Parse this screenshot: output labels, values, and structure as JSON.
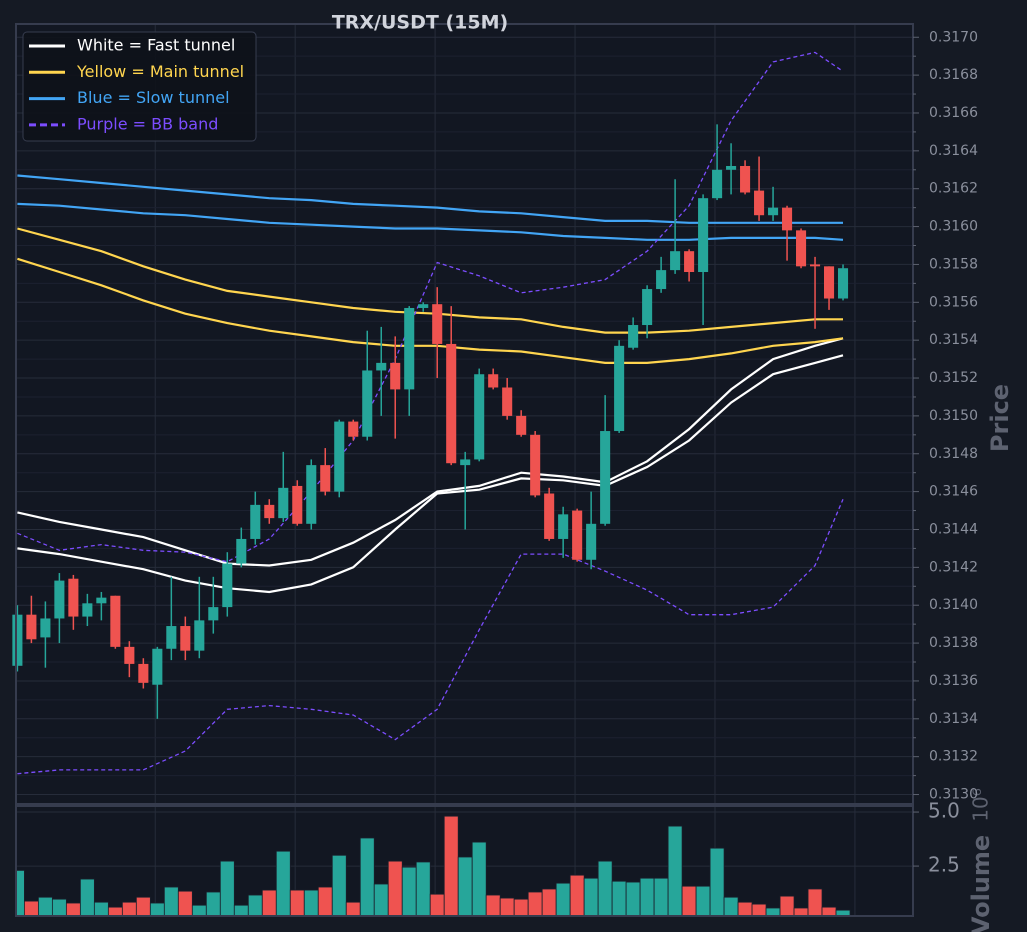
{
  "chart_data": [
    {
      "type": "candlestick",
      "title": "TRX/USDT (15M)",
      "ylabel": "Price",
      "up_color": "#26a69a",
      "down_color": "#ef5350",
      "xlim": [
        -0.1,
        64
      ],
      "xticks": [
        9.85,
        19.85,
        29.85,
        39.85,
        49.85,
        59.85
      ],
      "ylim": [
        0.31295,
        0.31707
      ],
      "yticks": [
        {
          "value": 0.313,
          "label": "0.3130"
        },
        0.3132,
        0.3134,
        0.3136,
        0.3138,
        {
          "value": 0.314,
          "label": "0.3140"
        },
        0.3142,
        0.3144,
        0.3146,
        0.3148,
        {
          "value": 0.315,
          "label": "0.3150"
        },
        0.3152,
        0.3154,
        0.3156,
        0.3158,
        {
          "value": 0.316,
          "label": "0.3160"
        },
        0.3162,
        0.3164,
        0.3166,
        0.3168,
        {
          "value": 0.317,
          "label": "0.3170"
        }
      ],
      "grid": true,
      "open": [
        0.31368,
        0.31395,
        0.31383,
        0.31393,
        0.31414,
        0.31394,
        0.31401,
        0.31405,
        0.31378,
        0.31369,
        0.31358,
        0.31377,
        0.31389,
        0.31376,
        0.31392,
        0.31399,
        0.31422,
        0.31435,
        0.31453,
        0.31446,
        0.31463,
        0.31443,
        0.31474,
        0.3146,
        0.31497,
        0.31489,
        0.31524,
        0.31528,
        0.31514,
        0.31557,
        0.31559,
        0.31538,
        0.31474,
        0.31477,
        0.31522,
        0.31515,
        0.315,
        0.3149,
        0.31459,
        0.31435,
        0.3145,
        0.31424,
        0.31443,
        0.31492,
        0.31536,
        0.31548,
        0.31567,
        0.31577,
        0.31587,
        0.31576,
        0.31615,
        0.3163,
        0.31632,
        0.31619,
        0.31606,
        0.3161,
        0.31598,
        0.3158,
        0.31579,
        0.31562
      ],
      "high": [
        0.314,
        0.31405,
        0.31402,
        0.31417,
        0.31416,
        0.31406,
        0.31407,
        0.31405,
        0.31381,
        0.31372,
        0.31378,
        0.31415,
        0.31394,
        0.31415,
        0.31415,
        0.31428,
        0.31441,
        0.3146,
        0.31456,
        0.31481,
        0.31466,
        0.31477,
        0.31483,
        0.31498,
        0.31498,
        0.31545,
        0.31547,
        0.31542,
        0.31558,
        0.3156,
        0.31568,
        0.31558,
        0.31481,
        0.31525,
        0.31525,
        0.3152,
        0.31503,
        0.31492,
        0.31462,
        0.31452,
        0.31451,
        0.3146,
        0.31511,
        0.3154,
        0.31552,
        0.31569,
        0.31584,
        0.31625,
        0.31588,
        0.31617,
        0.31654,
        0.31644,
        0.31635,
        0.31637,
        0.31621,
        0.31611,
        0.31599,
        0.31584,
        0.31579,
        0.3158
      ],
      "low": [
        0.31365,
        0.3138,
        0.31367,
        0.3138,
        0.31387,
        0.31389,
        0.31392,
        0.31377,
        0.31362,
        0.31356,
        0.3134,
        0.31371,
        0.31371,
        0.31372,
        0.31385,
        0.31394,
        0.3142,
        0.31432,
        0.31443,
        0.31444,
        0.31442,
        0.3144,
        0.31458,
        0.31457,
        0.31487,
        0.31487,
        0.315,
        0.31488,
        0.315,
        0.31555,
        0.3152,
        0.31474,
        0.3144,
        0.31476,
        0.31514,
        0.31498,
        0.31489,
        0.31457,
        0.31434,
        0.31425,
        0.31423,
        0.31419,
        0.31442,
        0.31491,
        0.31535,
        0.31541,
        0.31565,
        0.31575,
        0.31571,
        0.31548,
        0.31614,
        0.31617,
        0.31617,
        0.31603,
        0.31603,
        0.31582,
        0.31578,
        0.31546,
        0.31556,
        0.31561
      ],
      "close": [
        0.31395,
        0.31382,
        0.31393,
        0.31413,
        0.31394,
        0.31401,
        0.31404,
        0.31378,
        0.31369,
        0.31359,
        0.31377,
        0.31389,
        0.31376,
        0.31392,
        0.31399,
        0.31422,
        0.31435,
        0.31453,
        0.31446,
        0.31462,
        0.31443,
        0.31474,
        0.3146,
        0.31497,
        0.31489,
        0.31524,
        0.31528,
        0.31514,
        0.31557,
        0.31559,
        0.31538,
        0.31475,
        0.31477,
        0.31522,
        0.31515,
        0.315,
        0.3149,
        0.31458,
        0.31435,
        0.31448,
        0.31424,
        0.31443,
        0.31492,
        0.31537,
        0.31548,
        0.31567,
        0.31577,
        0.31587,
        0.31576,
        0.31615,
        0.3163,
        0.31632,
        0.31618,
        0.31606,
        0.3161,
        0.31598,
        0.31579,
        0.31579,
        0.31562,
        0.31578
      ],
      "line_x": [
        0,
        3,
        6,
        9,
        12,
        15,
        18,
        21,
        24,
        27,
        30,
        33,
        36,
        39,
        42,
        45,
        48,
        51,
        54,
        57,
        59
      ],
      "lines": [
        {
          "name": "White = Fast tunnel",
          "color": "#ffffff",
          "style": "solid",
          "upper": [
            0.31449,
            0.31444,
            0.3144,
            0.31436,
            0.31429,
            0.31422,
            0.31421,
            0.31424,
            0.31433,
            0.31445,
            0.3146,
            0.31463,
            0.3147,
            0.31468,
            0.31465,
            0.31476,
            0.31493,
            0.31514,
            0.3153,
            0.31537,
            0.31541
          ],
          "lower": [
            0.3143,
            0.31427,
            0.31423,
            0.31419,
            0.31413,
            0.31409,
            0.31407,
            0.31411,
            0.3142,
            0.3144,
            0.31459,
            0.31461,
            0.31467,
            0.31466,
            0.31463,
            0.31473,
            0.31487,
            0.31507,
            0.31522,
            0.31528,
            0.31532
          ]
        },
        {
          "name": "Yellow = Main tunnel",
          "color": "#ffd54f",
          "style": "solid",
          "upper": [
            0.31599,
            0.31593,
            0.31587,
            0.31579,
            0.31572,
            0.31566,
            0.31563,
            0.3156,
            0.31557,
            0.31555,
            0.31554,
            0.31552,
            0.31551,
            0.31547,
            0.31544,
            0.31544,
            0.31545,
            0.31547,
            0.31549,
            0.31551,
            0.31551
          ],
          "lower": [
            0.31583,
            0.31576,
            0.31569,
            0.31561,
            0.31554,
            0.31549,
            0.31545,
            0.31542,
            0.31539,
            0.31537,
            0.31537,
            0.31535,
            0.31534,
            0.31531,
            0.31528,
            0.31528,
            0.3153,
            0.31533,
            0.31537,
            0.31539,
            0.31541
          ]
        },
        {
          "name": "Blue = Slow tunnel",
          "color": "#42a5f5",
          "style": "solid",
          "upper": [
            0.31627,
            0.31625,
            0.31623,
            0.31621,
            0.31619,
            0.31617,
            0.31615,
            0.31614,
            0.31612,
            0.31611,
            0.3161,
            0.31608,
            0.31607,
            0.31605,
            0.31603,
            0.31603,
            0.31602,
            0.31602,
            0.31602,
            0.31602,
            0.31602
          ],
          "lower": [
            0.31612,
            0.31611,
            0.31609,
            0.31607,
            0.31606,
            0.31604,
            0.31602,
            0.31601,
            0.316,
            0.31599,
            0.31599,
            0.31598,
            0.31597,
            0.31595,
            0.31594,
            0.31593,
            0.31593,
            0.31594,
            0.31594,
            0.31594,
            0.31593
          ]
        },
        {
          "name": "Purple = BB band",
          "color": "#7c4dff",
          "style": "dashed",
          "upper": [
            0.31438,
            0.31429,
            0.31432,
            0.31429,
            0.31428,
            0.31423,
            0.31435,
            0.3146,
            0.31487,
            0.3153,
            0.31581,
            0.31574,
            0.31565,
            0.31568,
            0.31572,
            0.31587,
            0.31611,
            0.31656,
            0.31687,
            0.31692,
            0.31682
          ],
          "lower": [
            0.31311,
            0.31313,
            0.31313,
            0.31313,
            0.31323,
            0.31345,
            0.31347,
            0.31345,
            0.31342,
            0.31329,
            0.31345,
            0.31387,
            0.31427,
            0.31427,
            0.31418,
            0.31408,
            0.31395,
            0.31395,
            0.31399,
            0.31421,
            0.31456
          ]
        }
      ]
    },
    {
      "type": "bar",
      "ylabel": "Volume",
      "offset_label": "10⁶",
      "ylim": [
        0.19,
        5.28
      ],
      "yticks": [
        2.5,
        {
          "value": 5,
          "label": "5.0"
        }
      ],
      "values": [
        2.3,
        0.88,
        1.06,
        0.97,
        0.79,
        1.9,
        0.83,
        0.6,
        0.83,
        1.06,
        0.79,
        1.53,
        1.34,
        0.69,
        1.3,
        2.73,
        0.69,
        1.16,
        1.39,
        3.19,
        1.39,
        1.39,
        1.53,
        3.0,
        0.83,
        3.8,
        1.67,
        2.73,
        2.45,
        2.69,
        1.2,
        4.81,
        2.92,
        3.61,
        1.16,
        1.02,
        0.97,
        1.3,
        1.44,
        1.71,
        2.08,
        1.94,
        2.73,
        1.8,
        1.76,
        1.94,
        1.94,
        4.35,
        1.57,
        1.57,
        3.33,
        1.06,
        0.83,
        0.74,
        0.56,
        1.11,
        0.56,
        1.44,
        0.6,
        0.46
      ]
    }
  ]
}
